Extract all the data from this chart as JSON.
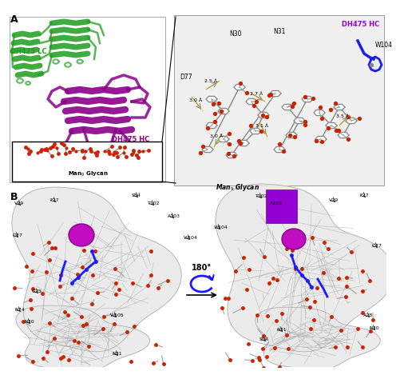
{
  "figure_label_A": "A",
  "figure_label_B": "B",
  "bg_color": "#ffffff",
  "green_color": "#1e9e1e",
  "purple_main": "#8b008b",
  "purple_bright": "#9400d3",
  "blue_color": "#1a1aff",
  "red_color": "#cc2200",
  "black": "#000000",
  "gray_light": "#d0d0d0",
  "gray_dark": "#888888",
  "yellow_dist": "#ccaa00",
  "panel_A_left_labels": [
    "DH475 LC",
    "DH475 HC",
    "Man₉ Glycan"
  ],
  "panel_A_right_label_HC": "DH475 HC",
  "panel_A_right_labels": [
    "D77",
    "N30",
    "N31",
    "W104",
    "Man₉ Glycan"
  ],
  "panel_A_distances": [
    "2.5 Å",
    "3.0 Å",
    "2.7 Å",
    "3.1 Å",
    "3.0 Å",
    "3.5 Å"
  ],
  "panel_B_left_labels": [
    "V29",
    "F27",
    "S54",
    "T102",
    "A103",
    "W104",
    "D77",
    "G75",
    "N74",
    "N30",
    "W105",
    "N31"
  ],
  "panel_B_right_labels": [
    "T102",
    "A103",
    "F27",
    "V29",
    "W104",
    "D77",
    "S54",
    "N31",
    "A28",
    "N30"
  ],
  "rotation_label": "180°"
}
